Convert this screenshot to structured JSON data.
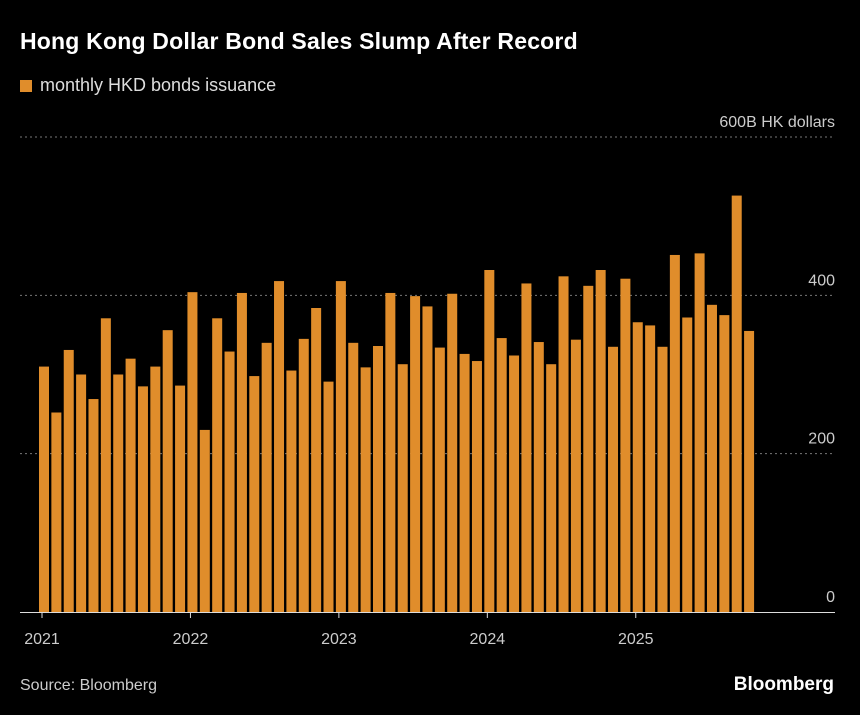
{
  "title": "Hong Kong Dollar Bond Sales Slump After Record",
  "source": "Source: Bloomberg",
  "brand": "Bloomberg",
  "chart_data": {
    "type": "bar",
    "title": "Hong Kong Dollar Bond Sales Slump After Record",
    "legend": {
      "position": "top-left",
      "entries": [
        "monthly HKD bonds issuance"
      ]
    },
    "series": [
      {
        "name": "monthly HKD bonds issuance",
        "color": "#e08d2b",
        "start": "2021-01",
        "frequency": "monthly",
        "values": [
          310,
          252,
          331,
          300,
          269,
          371,
          300,
          320,
          285,
          310,
          356,
          286,
          404,
          230,
          371,
          329,
          403,
          298,
          340,
          418,
          305,
          345,
          384,
          291,
          418,
          340,
          309,
          336,
          403,
          313,
          399,
          386,
          334,
          402,
          326,
          317,
          432,
          346,
          324,
          415,
          341,
          313,
          424,
          344,
          412,
          432,
          335,
          421,
          366,
          362,
          335,
          451,
          372,
          453,
          388,
          375,
          526,
          355
        ]
      }
    ],
    "x_ticks": [
      "2021",
      "2022",
      "2023",
      "2024",
      "2025"
    ],
    "y_ticks": [
      "0",
      "200",
      "400",
      "600B HK dollars"
    ],
    "y_unit": "B HK dollars",
    "ylim": [
      0,
      600
    ],
    "y_axis_side": "right",
    "grid": true
  }
}
